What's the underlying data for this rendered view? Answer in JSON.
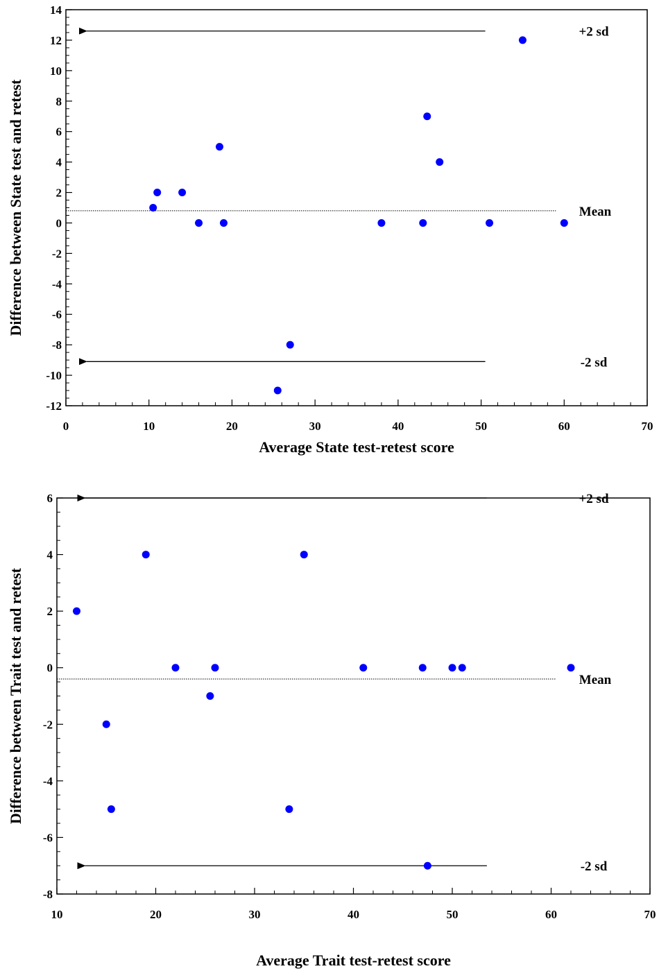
{
  "chart_data": [
    {
      "type": "scatter",
      "xlabel": "Average State test-retest score",
      "ylabel": "Difference between State test and retest",
      "xlim": [
        0,
        70
      ],
      "ylim": [
        -12,
        14
      ],
      "xticks": [
        0,
        10,
        20,
        30,
        40,
        50,
        60,
        70
      ],
      "yticks": [
        -12,
        -10,
        -8,
        -6,
        -4,
        -2,
        0,
        2,
        4,
        6,
        8,
        10,
        12,
        14
      ],
      "grid": false,
      "point_color": "#0000ff",
      "points": [
        {
          "x": 10.5,
          "y": 1
        },
        {
          "x": 11,
          "y": 2
        },
        {
          "x": 14,
          "y": 2
        },
        {
          "x": 16,
          "y": 0
        },
        {
          "x": 18.5,
          "y": 5
        },
        {
          "x": 19,
          "y": 0
        },
        {
          "x": 25.5,
          "y": -11
        },
        {
          "x": 27,
          "y": -8
        },
        {
          "x": 38,
          "y": 0
        },
        {
          "x": 43,
          "y": 0
        },
        {
          "x": 43.5,
          "y": 7
        },
        {
          "x": 45,
          "y": 4
        },
        {
          "x": 51,
          "y": 0
        },
        {
          "x": 55,
          "y": 12
        },
        {
          "x": 60,
          "y": 0
        }
      ],
      "reference_lines": [
        {
          "label": "+2 sd",
          "y": 12.6,
          "style": "arrow",
          "x_range": [
            1.5,
            50.5
          ]
        },
        {
          "label": "Mean",
          "y": 0.8,
          "style": "dotted",
          "x_range": [
            0,
            59
          ]
        },
        {
          "label": "-2 sd",
          "y": -9.1,
          "style": "arrow",
          "x_range": [
            1.5,
            50.5
          ]
        }
      ]
    },
    {
      "type": "scatter",
      "xlabel": "Average Trait test-retest score",
      "ylabel": "Difference between Trait test and retest",
      "xlim": [
        10,
        70
      ],
      "ylim": [
        -8,
        6
      ],
      "xticks": [
        10,
        20,
        30,
        40,
        50,
        60,
        70
      ],
      "yticks": [
        -8,
        -6,
        -4,
        -2,
        0,
        2,
        4,
        6
      ],
      "grid": false,
      "point_color": "#0000ff",
      "points": [
        {
          "x": 12,
          "y": 2
        },
        {
          "x": 15,
          "y": -2
        },
        {
          "x": 15.5,
          "y": -5
        },
        {
          "x": 19,
          "y": 4
        },
        {
          "x": 22,
          "y": 0
        },
        {
          "x": 25.5,
          "y": -1
        },
        {
          "x": 26,
          "y": 0
        },
        {
          "x": 33.5,
          "y": -5
        },
        {
          "x": 35,
          "y": 4
        },
        {
          "x": 41,
          "y": 0
        },
        {
          "x": 47,
          "y": 0
        },
        {
          "x": 47.5,
          "y": -7
        },
        {
          "x": 50,
          "y": 0
        },
        {
          "x": 51,
          "y": 0
        },
        {
          "x": 62,
          "y": 0
        }
      ],
      "reference_lines": [
        {
          "label": "+2 sd",
          "y": 6,
          "style": "arrow",
          "x_range": [
            12,
            53.5
          ]
        },
        {
          "label": "Mean",
          "y": -0.4,
          "style": "dotted",
          "x_range": [
            10,
            60.5
          ]
        },
        {
          "label": "-2 sd",
          "y": -7,
          "style": "arrow",
          "x_range": [
            12,
            53.5
          ]
        }
      ]
    }
  ]
}
